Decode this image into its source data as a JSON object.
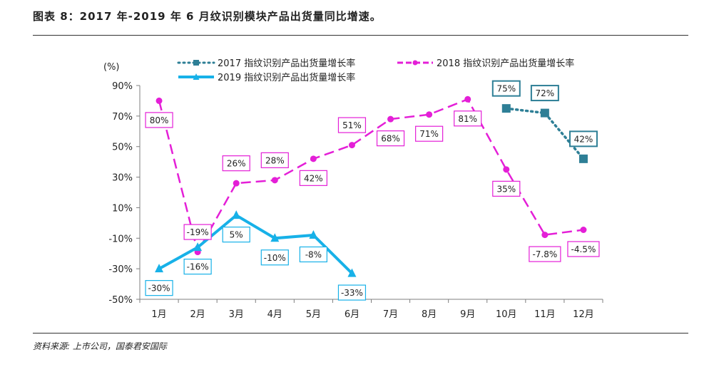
{
  "title": "图表 8：2017 年-2019 年 6 月纹识别模块产品出货量同比增速。",
  "source": "资料来源:  上市公司，国泰君安国际",
  "chart_data": {
    "type": "line",
    "title": "2017 年-2019 年 6 月纹识别模块产品出货量同比增速",
    "ylabel": "(%)",
    "xlabel": "",
    "ylim": [
      -50,
      90
    ],
    "yticks": [
      -50,
      -30,
      -10,
      10,
      30,
      50,
      70,
      90
    ],
    "ytick_labels": [
      "-50%",
      "-30%",
      "-10%",
      "10%",
      "30%",
      "50%",
      "70%",
      "90%"
    ],
    "categories": [
      "1月",
      "2月",
      "3月",
      "4月",
      "5月",
      "6月",
      "7月",
      "8月",
      "9月",
      "10月",
      "11月",
      "12月"
    ],
    "legend_position": "top",
    "series": [
      {
        "name": "2017  指纹识别产品出货量增长率",
        "color": "#2e7f96",
        "style": "dotted",
        "marker": "square",
        "values": [
          null,
          null,
          null,
          null,
          null,
          null,
          null,
          null,
          null,
          75,
          72,
          42
        ],
        "labels": [
          null,
          null,
          null,
          null,
          null,
          null,
          null,
          null,
          null,
          "75%",
          "72%",
          "42%"
        ]
      },
      {
        "name": "2018  指纹识别产品出货量增长率",
        "color": "#e41fd7",
        "style": "dashed",
        "marker": "circle",
        "values": [
          80,
          -19,
          26,
          28,
          42,
          51,
          68,
          71,
          81,
          35,
          -7.8,
          -4.5
        ],
        "labels": [
          "80%",
          "-19%",
          "26%",
          "28%",
          "42%",
          "51%",
          "68%",
          "71%",
          "81%",
          "35%",
          "-7.8%",
          "-4.5%"
        ]
      },
      {
        "name": "2019  指纹识别产品出货量增长率",
        "color": "#17b1e8",
        "style": "solid",
        "marker": "triangle",
        "values": [
          -30,
          -16,
          5,
          -10,
          -8,
          -33,
          null,
          null,
          null,
          null,
          null,
          null
        ],
        "labels": [
          "-30%",
          "-16%",
          "5%",
          "-10%",
          "-8%",
          "-33%",
          null,
          null,
          null,
          null,
          null,
          null
        ]
      }
    ]
  }
}
